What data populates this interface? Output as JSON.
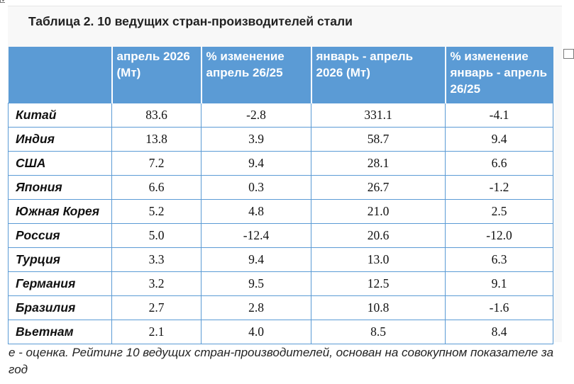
{
  "title": "Таблица 2. 10 ведущих стран-производителей стали",
  "table": {
    "headers": [
      "",
      "апрель 2026 (Мт)",
      "% изменение апрель 26/25",
      "январь - апрель 2026 (Мт)",
      "% изменение январь - апрель 26/25"
    ],
    "rows": [
      {
        "country": "Китай",
        "april": "83.6",
        "april_change": "-2.8",
        "jan_apr": "331.1",
        "jan_apr_change": "-4.1"
      },
      {
        "country": "Индия",
        "april": "13.8",
        "april_change": "3.9",
        "jan_apr": "58.7",
        "jan_apr_change": "9.4"
      },
      {
        "country": "США",
        "april": "7.2",
        "april_change": "9.4",
        "jan_apr": "28.1",
        "jan_apr_change": "6.6"
      },
      {
        "country": "Япония",
        "april": "6.6",
        "april_change": "0.3",
        "jan_apr": "26.7",
        "jan_apr_change": "-1.2"
      },
      {
        "country": "Южная Корея",
        "april": "5.2",
        "april_change": "4.8",
        "jan_apr": "21.0",
        "jan_apr_change": "2.5"
      },
      {
        "country": "Россия",
        "april": "5.0",
        "april_change": "-12.4",
        "jan_apr": "20.6",
        "jan_apr_change": "-12.0"
      },
      {
        "country": "Турция",
        "april": "3.3",
        "april_change": "9.4",
        "jan_apr": "13.0",
        "jan_apr_change": "6.3"
      },
      {
        "country": "Германия",
        "april": "3.2",
        "april_change": "9.5",
        "jan_apr": "12.5",
        "jan_apr_change": "9.1"
      },
      {
        "country": "Бразилия",
        "april": "2.7",
        "april_change": "2.8",
        "jan_apr": "10.8",
        "jan_apr_change": "-1.6"
      },
      {
        "country": "Вьетнам",
        "april": "2.1",
        "april_change": "4.0",
        "jan_apr": "8.5",
        "jan_apr_change": "8.4"
      }
    ]
  },
  "footnote": " е - оценка. Рейтинг 10 ведущих стран-производителей, основан на совокупном показателе за год",
  "colors": {
    "header_bg": "#5b9bd5",
    "header_text": "#ffffff",
    "grid_line": "#5b9bd5",
    "sheet_bg": "#f8f8f8"
  }
}
